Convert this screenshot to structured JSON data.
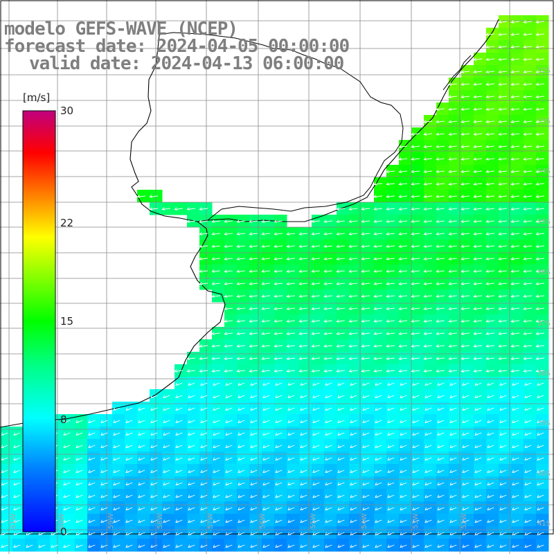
{
  "title": {
    "line1": "modelo GEFS-WAVE (NCEP)",
    "line2": "forecast date: 2024-04-05 00:00:00",
    "line3": "valid date: 2024-04-13 06:00:00"
  },
  "colorbar": {
    "unit": "[m/s]",
    "min": 0,
    "max": 30,
    "tick_labels": [
      "30",
      "22",
      "15",
      "8",
      "0"
    ],
    "tick_values": [
      30,
      22,
      15,
      8,
      0
    ],
    "colors": [
      "#0000ff",
      "#0080ff",
      "#00ffff",
      "#00ff80",
      "#00ff00",
      "#80ff00",
      "#ffff00",
      "#ff8000",
      "#ff0000",
      "#c0007f"
    ]
  },
  "map": {
    "lat_labels": [
      "32S",
      "33S",
      "34S",
      "35S",
      "36S",
      "37S",
      "38S",
      "39S",
      "40S",
      "41S"
    ],
    "lon_labels": [
      "61W",
      "60W",
      "59W",
      "58W",
      "57W",
      "56W",
      "55W",
      "54W",
      "53W",
      "52W"
    ],
    "background_color": "#ffffff",
    "grid_color": "#888888",
    "arrow_color": "#ffffff"
  }
}
